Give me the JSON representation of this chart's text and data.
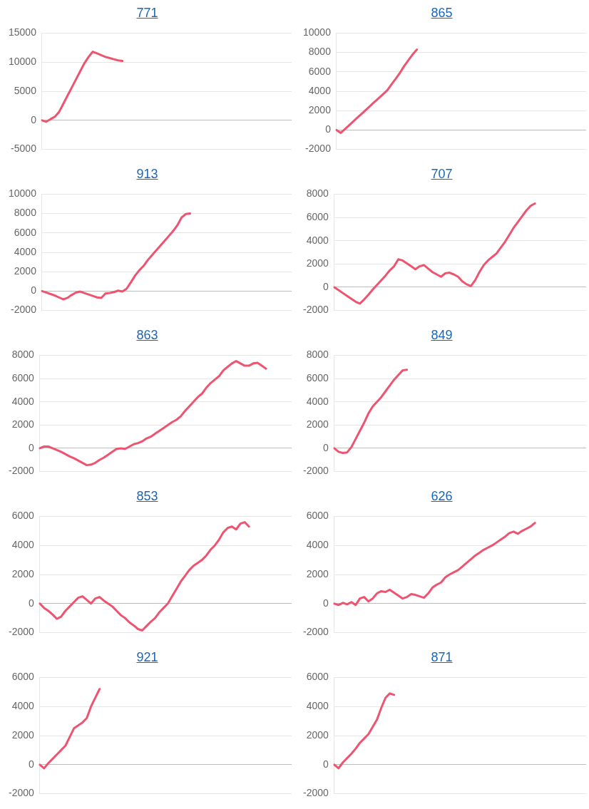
{
  "chart_data": [
    {
      "type": "line",
      "title": "771",
      "color": "#ee5470",
      "marker": "none",
      "line_style": "solid",
      "grid": "y",
      "tick_labels": "y",
      "ylim": [
        -5000,
        15000
      ],
      "yticks": [
        -5000,
        0,
        5000,
        10000,
        15000
      ],
      "categories": [
        null,
        null,
        null,
        null,
        null,
        null,
        null,
        null,
        null,
        null,
        null,
        null,
        null,
        null,
        null,
        null,
        null,
        null,
        null,
        null,
        null,
        null,
        null,
        null,
        null,
        null,
        null,
        null,
        null,
        null,
        null,
        null,
        null,
        null,
        null,
        null,
        null,
        null,
        null,
        null,
        null,
        null,
        null,
        null,
        null,
        null,
        null,
        null,
        null,
        null,
        null,
        null,
        null,
        null,
        null,
        null,
        null,
        null,
        null,
        null
      ],
      "values": [
        0,
        -250,
        200,
        600,
        1400,
        2800,
        4200,
        5600,
        7000,
        8400,
        9800,
        10900,
        11800,
        11500,
        11200,
        10900,
        10700,
        10500,
        10300,
        10200,
        null,
        null,
        null,
        null,
        null,
        null,
        null,
        null,
        null,
        null,
        null,
        null,
        null,
        null,
        null,
        null,
        null,
        null,
        null,
        null,
        null,
        null,
        null,
        null,
        null,
        null,
        null,
        null,
        null,
        null,
        null,
        null,
        null,
        null,
        null,
        null,
        null,
        null,
        null,
        null
      ]
    },
    {
      "type": "line",
      "title": "865",
      "color": "#ee5470",
      "marker": "none",
      "line_style": "solid",
      "grid": "y",
      "tick_labels": "y",
      "ylim": [
        -2000,
        10000
      ],
      "yticks": [
        -2000,
        0,
        2000,
        4000,
        6000,
        8000,
        10000
      ],
      "categories": [
        null,
        null,
        null,
        null,
        null,
        null,
        null,
        null,
        null,
        null,
        null,
        null,
        null,
        null,
        null,
        null,
        null,
        null,
        null,
        null,
        null,
        null,
        null,
        null,
        null,
        null,
        null,
        null,
        null,
        null,
        null,
        null,
        null,
        null,
        null,
        null,
        null,
        null,
        null,
        null,
        null,
        null,
        null,
        null,
        null,
        null,
        null,
        null,
        null,
        null,
        null,
        null,
        null,
        null,
        null,
        null,
        null,
        null,
        null,
        null
      ],
      "values": [
        0,
        -300,
        100,
        500,
        900,
        1300,
        1700,
        2100,
        2500,
        2900,
        3300,
        3700,
        4100,
        4700,
        5300,
        5900,
        6600,
        7200,
        7800,
        8300,
        null,
        null,
        null,
        null,
        null,
        null,
        null,
        null,
        null,
        null,
        null,
        null,
        null,
        null,
        null,
        null,
        null,
        null,
        null,
        null,
        null,
        null,
        null,
        null,
        null,
        null,
        null,
        null,
        null,
        null,
        null,
        null,
        null,
        null,
        null,
        null,
        null,
        null,
        null,
        null
      ]
    },
    {
      "type": "line",
      "title": "913",
      "color": "#ee5470",
      "marker": "none",
      "line_style": "solid",
      "grid": "y",
      "tick_labels": "y",
      "ylim": [
        -2000,
        10000
      ],
      "yticks": [
        -2000,
        0,
        2000,
        4000,
        6000,
        8000,
        10000
      ],
      "categories": [
        null,
        null,
        null,
        null,
        null,
        null,
        null,
        null,
        null,
        null,
        null,
        null,
        null,
        null,
        null,
        null,
        null,
        null,
        null,
        null,
        null,
        null,
        null,
        null,
        null,
        null,
        null,
        null,
        null,
        null,
        null,
        null,
        null,
        null,
        null,
        null,
        null,
        null,
        null,
        null,
        null,
        null,
        null,
        null,
        null,
        null,
        null,
        null,
        null,
        null,
        null,
        null,
        null,
        null,
        null,
        null,
        null,
        null,
        null,
        null
      ],
      "values": [
        0,
        -150,
        -300,
        -450,
        -650,
        -850,
        -700,
        -400,
        -150,
        -50,
        -200,
        -350,
        -500,
        -650,
        -700,
        -250,
        -200,
        -100,
        50,
        -50,
        250,
        900,
        1600,
        2150,
        2600,
        3200,
        3700,
        4200,
        4700,
        5200,
        5700,
        6200,
        6800,
        7600,
        7950,
        8000,
        null,
        null,
        null,
        null,
        null,
        null,
        null,
        null,
        null,
        null,
        null,
        null,
        null,
        null,
        null,
        null,
        null,
        null,
        null,
        null,
        null,
        null,
        null,
        null
      ]
    },
    {
      "type": "line",
      "title": "707",
      "color": "#ee5470",
      "marker": "none",
      "line_style": "solid",
      "grid": "y",
      "tick_labels": "y",
      "ylim": [
        -2000,
        8000
      ],
      "yticks": [
        -2000,
        0,
        2000,
        4000,
        6000,
        8000
      ],
      "categories": [
        null,
        null,
        null,
        null,
        null,
        null,
        null,
        null,
        null,
        null,
        null,
        null,
        null,
        null,
        null,
        null,
        null,
        null,
        null,
        null,
        null,
        null,
        null,
        null,
        null,
        null,
        null,
        null,
        null,
        null,
        null,
        null,
        null,
        null,
        null,
        null,
        null,
        null,
        null,
        null,
        null,
        null,
        null,
        null,
        null,
        null,
        null,
        null,
        null,
        null,
        null,
        null,
        null,
        null,
        null,
        null,
        null,
        null,
        null,
        null
      ],
      "values": [
        0,
        -250,
        -500,
        -750,
        -1000,
        -1250,
        -1400,
        -1050,
        -650,
        -200,
        200,
        600,
        1000,
        1450,
        1800,
        2400,
        2300,
        2050,
        1800,
        1550,
        1800,
        1900,
        1600,
        1300,
        1100,
        900,
        1200,
        1250,
        1100,
        900,
        500,
        250,
        100,
        600,
        1300,
        1900,
        2300,
        2600,
        2900,
        3400,
        3900,
        4500,
        5100,
        5600,
        6100,
        6600,
        7000,
        7200,
        null,
        null,
        null,
        null,
        null,
        null,
        null,
        null,
        null,
        null,
        null,
        null
      ]
    },
    {
      "type": "line",
      "title": "863",
      "color": "#ee5470",
      "marker": "none",
      "line_style": "solid",
      "grid": "y",
      "tick_labels": "y",
      "ylim": [
        -2000,
        8000
      ],
      "yticks": [
        -2000,
        0,
        2000,
        4000,
        6000,
        8000
      ],
      "categories": [
        null,
        null,
        null,
        null,
        null,
        null,
        null,
        null,
        null,
        null,
        null,
        null,
        null,
        null,
        null,
        null,
        null,
        null,
        null,
        null,
        null,
        null,
        null,
        null,
        null,
        null,
        null,
        null,
        null,
        null,
        null,
        null,
        null,
        null,
        null,
        null,
        null,
        null,
        null,
        null,
        null,
        null,
        null,
        null,
        null,
        null,
        null,
        null,
        null,
        null,
        null,
        null,
        null,
        null,
        null,
        null,
        null,
        null,
        null,
        null
      ],
      "values": [
        0,
        150,
        150,
        0,
        -150,
        -300,
        -500,
        -700,
        -850,
        -1050,
        -1250,
        -1450,
        -1400,
        -1250,
        -1000,
        -800,
        -550,
        -300,
        -50,
        0,
        -50,
        150,
        350,
        450,
        600,
        850,
        1000,
        1250,
        1500,
        1750,
        2000,
        2250,
        2450,
        2750,
        3200,
        3600,
        4000,
        4400,
        4700,
        5200,
        5600,
        5900,
        6200,
        6700,
        7000,
        7300,
        7500,
        7300,
        7100,
        7100,
        7300,
        7350,
        7100,
        6850,
        null,
        null,
        null,
        null,
        null,
        null
      ]
    },
    {
      "type": "line",
      "title": "849",
      "color": "#ee5470",
      "marker": "none",
      "line_style": "solid",
      "grid": "y",
      "tick_labels": "y",
      "ylim": [
        -2000,
        8000
      ],
      "yticks": [
        -2000,
        0,
        2000,
        4000,
        6000,
        8000
      ],
      "categories": [
        null,
        null,
        null,
        null,
        null,
        null,
        null,
        null,
        null,
        null,
        null,
        null,
        null,
        null,
        null,
        null,
        null,
        null,
        null,
        null,
        null,
        null,
        null,
        null,
        null,
        null,
        null,
        null,
        null,
        null,
        null,
        null,
        null,
        null,
        null,
        null,
        null,
        null,
        null,
        null,
        null,
        null,
        null,
        null,
        null,
        null,
        null,
        null,
        null,
        null,
        null,
        null,
        null,
        null,
        null,
        null,
        null,
        null,
        null,
        null
      ],
      "values": [
        0,
        -300,
        -400,
        -350,
        100,
        800,
        1500,
        2200,
        3000,
        3600,
        4000,
        4400,
        4900,
        5400,
        5900,
        6300,
        6700,
        6750,
        null,
        null,
        null,
        null,
        null,
        null,
        null,
        null,
        null,
        null,
        null,
        null,
        null,
        null,
        null,
        null,
        null,
        null,
        null,
        null,
        null,
        null,
        null,
        null,
        null,
        null,
        null,
        null,
        null,
        null,
        null,
        null,
        null,
        null,
        null,
        null,
        null,
        null,
        null,
        null,
        null,
        null
      ]
    },
    {
      "type": "line",
      "title": "853",
      "color": "#ee5470",
      "marker": "none",
      "line_style": "solid",
      "grid": "y",
      "tick_labels": "y",
      "ylim": [
        -2000,
        6000
      ],
      "yticks": [
        -2000,
        0,
        2000,
        4000,
        6000
      ],
      "categories": [
        null,
        null,
        null,
        null,
        null,
        null,
        null,
        null,
        null,
        null,
        null,
        null,
        null,
        null,
        null,
        null,
        null,
        null,
        null,
        null,
        null,
        null,
        null,
        null,
        null,
        null,
        null,
        null,
        null,
        null,
        null,
        null,
        null,
        null,
        null,
        null,
        null,
        null,
        null,
        null,
        null,
        null,
        null,
        null,
        null,
        null,
        null,
        null,
        null,
        null,
        null,
        null,
        null,
        null,
        null,
        null,
        null,
        null,
        null,
        null
      ],
      "values": [
        0,
        -300,
        -500,
        -750,
        -1050,
        -900,
        -500,
        -200,
        100,
        400,
        500,
        250,
        0,
        350,
        450,
        200,
        0,
        -200,
        -500,
        -800,
        -1000,
        -1300,
        -1500,
        -1750,
        -1850,
        -1550,
        -1250,
        -1000,
        -600,
        -300,
        0,
        500,
        1000,
        1500,
        1900,
        2300,
        2600,
        2800,
        3000,
        3300,
        3700,
        4000,
        4400,
        4900,
        5200,
        5300,
        5100,
        5500,
        5600,
        5300,
        null,
        null,
        null,
        null,
        null,
        null,
        null,
        null,
        null,
        null
      ]
    },
    {
      "type": "line",
      "title": "626",
      "color": "#ee5470",
      "marker": "none",
      "line_style": "solid",
      "grid": "y",
      "tick_labels": "y",
      "ylim": [
        -2000,
        6000
      ],
      "yticks": [
        -2000,
        0,
        2000,
        4000,
        6000
      ],
      "categories": [
        null,
        null,
        null,
        null,
        null,
        null,
        null,
        null,
        null,
        null,
        null,
        null,
        null,
        null,
        null,
        null,
        null,
        null,
        null,
        null,
        null,
        null,
        null,
        null,
        null,
        null,
        null,
        null,
        null,
        null,
        null,
        null,
        null,
        null,
        null,
        null,
        null,
        null,
        null,
        null,
        null,
        null,
        null,
        null,
        null,
        null,
        null,
        null,
        null,
        null,
        null,
        null,
        null,
        null,
        null,
        null,
        null,
        null,
        null,
        null
      ],
      "values": [
        0,
        -100,
        50,
        -50,
        100,
        -100,
        350,
        450,
        150,
        350,
        700,
        850,
        800,
        950,
        750,
        550,
        350,
        450,
        650,
        600,
        500,
        400,
        700,
        1100,
        1300,
        1450,
        1800,
        2000,
        2150,
        2300,
        2550,
        2800,
        3050,
        3300,
        3500,
        3700,
        3850,
        4000,
        4200,
        4400,
        4600,
        4850,
        4950,
        4800,
        5000,
        5150,
        5300,
        5550,
        null,
        null,
        null,
        null,
        null,
        null,
        null,
        null,
        null,
        null,
        null,
        null
      ]
    },
    {
      "type": "line",
      "title": "921",
      "color": "#ee5470",
      "marker": "none",
      "line_style": "solid",
      "grid": "y",
      "tick_labels": "y",
      "ylim": [
        -2000,
        6000
      ],
      "yticks": [
        -2000,
        0,
        2000,
        4000,
        6000
      ],
      "categories": [
        null,
        null,
        null,
        null,
        null,
        null,
        null,
        null,
        null,
        null,
        null,
        null,
        null,
        null,
        null,
        null,
        null,
        null,
        null,
        null,
        null,
        null,
        null,
        null,
        null,
        null,
        null,
        null,
        null,
        null,
        null,
        null,
        null,
        null,
        null,
        null,
        null,
        null,
        null,
        null,
        null,
        null,
        null,
        null,
        null,
        null,
        null,
        null,
        null,
        null,
        null,
        null,
        null,
        null,
        null,
        null,
        null,
        null,
        null,
        null
      ],
      "values": [
        0,
        -250,
        100,
        400,
        700,
        1000,
        1300,
        1900,
        2500,
        2700,
        2900,
        3200,
        4000,
        4600,
        5200,
        null,
        null,
        null,
        null,
        null,
        null,
        null,
        null,
        null,
        null,
        null,
        null,
        null,
        null,
        null,
        null,
        null,
        null,
        null,
        null,
        null,
        null,
        null,
        null,
        null,
        null,
        null,
        null,
        null,
        null,
        null,
        null,
        null,
        null,
        null,
        null,
        null,
        null,
        null,
        null,
        null,
        null,
        null,
        null,
        null
      ]
    },
    {
      "type": "line",
      "title": "871",
      "color": "#ee5470",
      "marker": "none",
      "line_style": "solid",
      "grid": "y",
      "tick_labels": "y",
      "ylim": [
        -2000,
        6000
      ],
      "yticks": [
        -2000,
        0,
        2000,
        4000,
        6000
      ],
      "categories": [
        null,
        null,
        null,
        null,
        null,
        null,
        null,
        null,
        null,
        null,
        null,
        null,
        null,
        null,
        null,
        null,
        null,
        null,
        null,
        null,
        null,
        null,
        null,
        null,
        null,
        null,
        null,
        null,
        null,
        null,
        null,
        null,
        null,
        null,
        null,
        null,
        null,
        null,
        null,
        null,
        null,
        null,
        null,
        null,
        null,
        null,
        null,
        null,
        null,
        null,
        null,
        null,
        null,
        null,
        null,
        null,
        null,
        null,
        null,
        null
      ],
      "values": [
        0,
        -250,
        150,
        450,
        750,
        1100,
        1500,
        1800,
        2100,
        2600,
        3100,
        3900,
        4600,
        4900,
        4800,
        null,
        null,
        null,
        null,
        null,
        null,
        null,
        null,
        null,
        null,
        null,
        null,
        null,
        null,
        null,
        null,
        null,
        null,
        null,
        null,
        null,
        null,
        null,
        null,
        null,
        null,
        null,
        null,
        null,
        null,
        null,
        null,
        null,
        null,
        null,
        null,
        null,
        null,
        null,
        null,
        null,
        null,
        null,
        null,
        null
      ]
    }
  ]
}
